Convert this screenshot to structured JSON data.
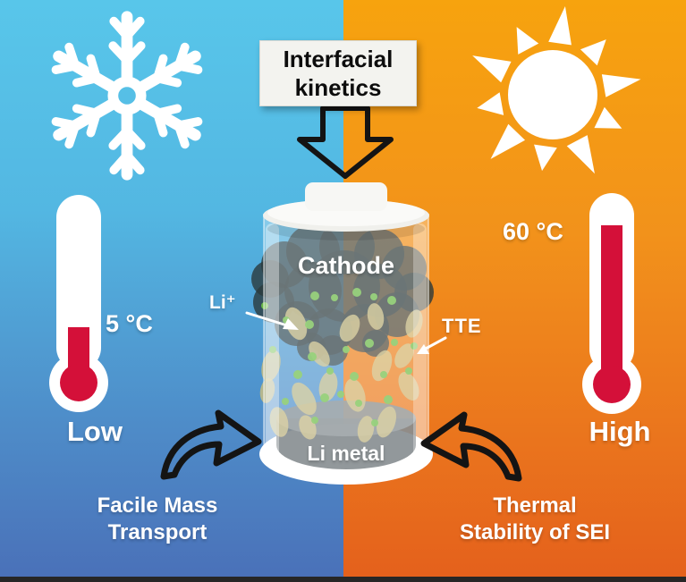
{
  "scene": {
    "title_box": {
      "label": "Interfacial\nkinetics"
    },
    "cell": {
      "cathode_label": "Cathode",
      "anode_label": "Li metal",
      "ion_label": "Li⁺",
      "solvent_label": "TTE"
    },
    "cold_side": {
      "temperature": "5 °C",
      "level": "Low",
      "caption": "Facile Mass\nTransport",
      "icon": "snowflake-icon",
      "thermometer": "thermometer-low-icon"
    },
    "hot_side": {
      "temperature": "60 °C",
      "level": "High",
      "caption": "Thermal\nStability of SEI",
      "icon": "sun-icon",
      "thermometer": "thermometer-high-icon"
    },
    "colors": {
      "cold_top": "#58C6EA",
      "cold_bottom": "#4A70B8",
      "hot_top": "#F7A30E",
      "hot_bottom": "#E4601C",
      "thermometer_red": "#D41039",
      "ion_green": "#6CBE44",
      "tte_tan": "#CDBF7E",
      "arrow_black": "#141414"
    }
  }
}
